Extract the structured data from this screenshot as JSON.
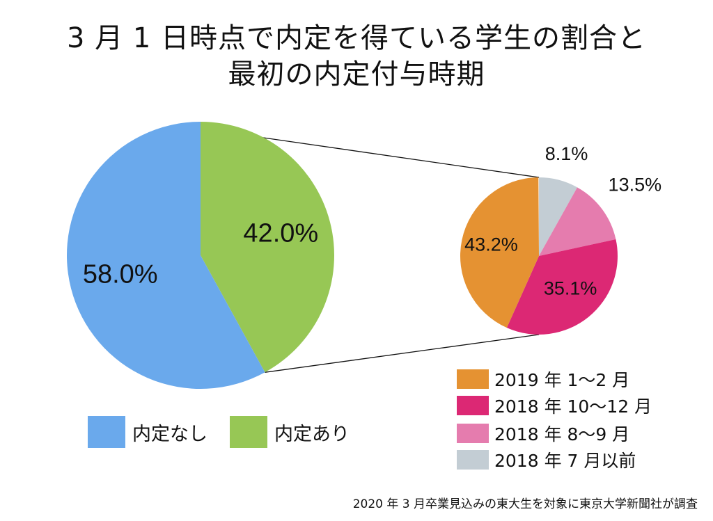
{
  "chart_data": [
    {
      "type": "pie",
      "title": "3月1日時点で内定を得ている学生の割合と最初の内定付与時期",
      "slices": [
        {
          "label": "内定あり",
          "value": 42.0,
          "display": "42.0%",
          "color": "#97c755"
        },
        {
          "label": "内定なし",
          "value": 58.0,
          "display": "58.0%",
          "color": "#6aa9ec"
        }
      ],
      "legend": [
        {
          "label": "内定なし",
          "color": "#6aa9ec"
        },
        {
          "label": "内定あり",
          "color": "#97c755"
        }
      ]
    },
    {
      "type": "pie",
      "detail_of": "内定あり",
      "slices": [
        {
          "label": "2018 年 7 月以前",
          "value": 8.1,
          "display": "8.1%",
          "color": "#c3cdd4"
        },
        {
          "label": "2018 年 8〜9 月",
          "value": 13.5,
          "display": "13.5%",
          "color": "#e57cae"
        },
        {
          "label": "2018 年 10〜12 月",
          "value": 35.1,
          "display": "35.1%",
          "color": "#dc2874"
        },
        {
          "label": "2019 年 1〜2 月",
          "value": 43.2,
          "display": "43.2%",
          "color": "#e59232"
        }
      ],
      "legend": [
        {
          "label": "2019 年 1〜2 月",
          "color": "#e59232"
        },
        {
          "label": "2018 年 10〜12 月",
          "color": "#dc2874"
        },
        {
          "label": "2018 年 8〜9 月",
          "color": "#e57cae"
        },
        {
          "label": "2018 年 7 月以前",
          "color": "#c3cdd4"
        }
      ]
    }
  ],
  "title_lines": [
    "3 月 1 日時点で内定を得ている学生の割合と",
    "最初の内定付与時期"
  ],
  "source": "2020 年 3 月卒業見込みの東大生を対象に東京大学新聞社が調査"
}
